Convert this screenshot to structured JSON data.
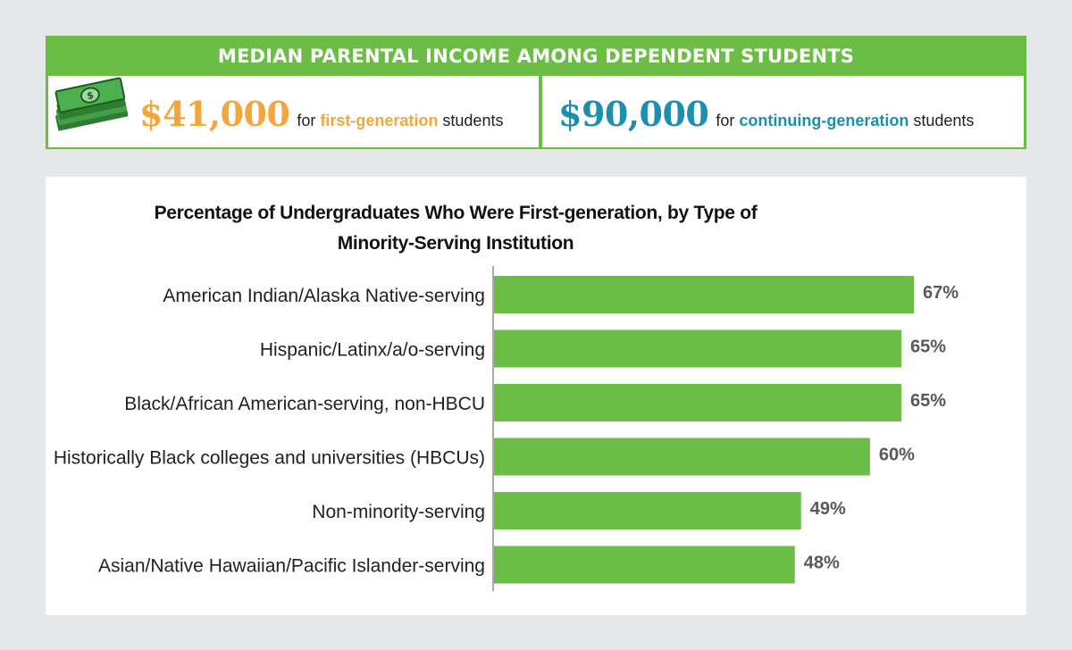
{
  "banner": {
    "title": "MEDIAN PARENTAL INCOME AMONG DEPENDENT STUDENTS",
    "first": {
      "amount": "$41,000",
      "pre": "for ",
      "highlight": "first-generation",
      "post": " students"
    },
    "continuing": {
      "amount": "$90,000",
      "pre": "for ",
      "highlight": "continuing-generation",
      "post": " students"
    },
    "icon": "money-stack-icon"
  },
  "colors": {
    "green": "#6cbd45",
    "orange": "#f4a63b",
    "teal": "#1d8fae",
    "value_label": "#58595b"
  },
  "chart_data": {
    "type": "bar",
    "orientation": "horizontal",
    "title_lines": [
      "Percentage of Undergraduates Who Were First-generation, by Type of",
      "Minority-Serving Institution"
    ],
    "categories": [
      "American Indian/Alaska Native-serving",
      "Hispanic/Latinx/a/o-serving",
      "Black/African American-serving, non-HBCU",
      "Historically Black colleges and universities (HBCUs)",
      "Non-minority-serving",
      "Asian/Native Hawaiian/Pacific Islander-serving"
    ],
    "values": [
      67,
      65,
      65,
      60,
      49,
      48
    ],
    "value_labels": [
      "67%",
      "65%",
      "65%",
      "60%",
      "49%",
      "48%"
    ],
    "unit": "%",
    "xlim": [
      0,
      100
    ],
    "grid": false
  }
}
